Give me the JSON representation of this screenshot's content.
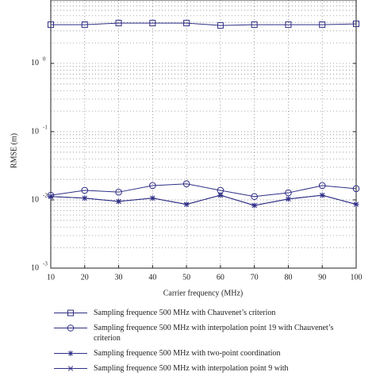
{
  "chart_data": {
    "type": "line",
    "xlabel": "Carrier frequency (MHz)",
    "ylabel": "RMSE (m)",
    "x": [
      10,
      20,
      30,
      40,
      50,
      60,
      70,
      80,
      90,
      100
    ],
    "xlim": [
      10,
      100
    ],
    "xticks": [
      10,
      20,
      30,
      40,
      50,
      60,
      70,
      80,
      90,
      100
    ],
    "ylim": [
      0.001,
      8.5
    ],
    "log_y": true,
    "grid": true,
    "yticks": [
      {
        "value": 0.001,
        "label": "10",
        "exponent": "-3"
      },
      {
        "value": 0.01,
        "label": "10",
        "exponent": "-2"
      },
      {
        "value": 0.1,
        "label": "10",
        "exponent": "-1"
      },
      {
        "value": 1,
        "label": "10",
        "exponent": "0"
      }
    ],
    "legend": "below",
    "series": [
      {
        "name": "Sampling frequence 500 MHz with Chauvenet’s criterion",
        "color": "#2e2e86",
        "marker": "square",
        "values": [
          3.7,
          3.7,
          3.9,
          3.9,
          3.9,
          3.6,
          3.7,
          3.7,
          3.7,
          3.8
        ]
      },
      {
        "name": "Sampling frequence 500 MHz with interpolation point 19 with Chauvenet’s criterion",
        "color": "#2e2e86",
        "marker": "circle",
        "values": [
          0.0117,
          0.0138,
          0.013,
          0.0162,
          0.0172,
          0.0138,
          0.0112,
          0.0127,
          0.0162,
          0.0146
        ]
      },
      {
        "name": "Sampling frequence 500 MHz with two-point coordination",
        "color": "#2e2e86",
        "marker": "star",
        "values": [
          0.0112,
          0.0106,
          0.0095,
          0.0106,
          0.0086,
          0.0117,
          0.0083,
          0.0103,
          0.0117,
          0.0086
        ]
      },
      {
        "name": "Sampling frequence 500 MHz with interpolation point 9 with",
        "color": "#2e2e86",
        "marker": "x",
        "values": [
          0.0112,
          0.0106,
          0.0095,
          0.0106,
          0.0086,
          0.0117,
          0.0083,
          0.0103,
          0.0117,
          0.0086
        ]
      }
    ]
  }
}
